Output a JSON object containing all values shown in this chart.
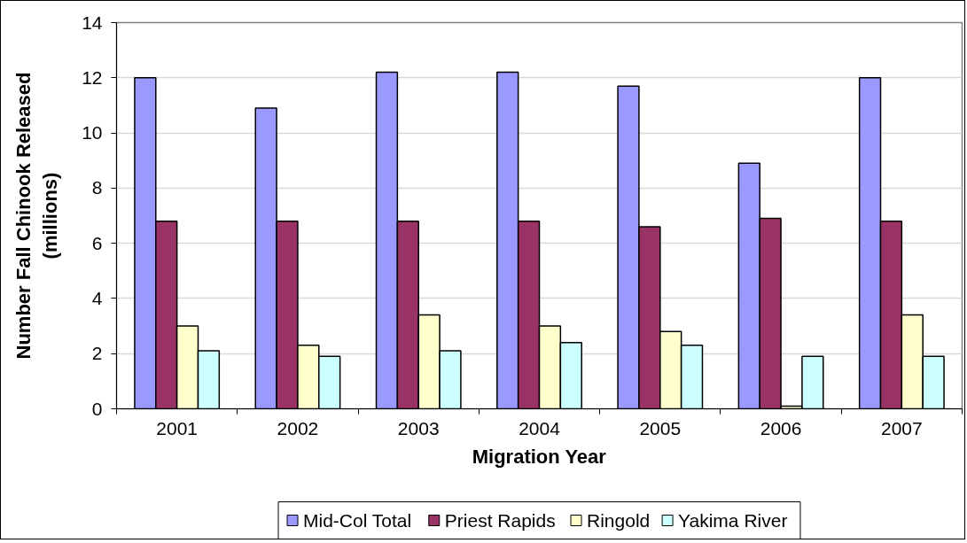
{
  "chart_data": {
    "type": "bar",
    "xlabel": "Migration Year",
    "ylabel": "Number Fall Chinook Released\n(millions)",
    "categories": [
      "2001",
      "2002",
      "2003",
      "2004",
      "2005",
      "2006",
      "2007"
    ],
    "series": [
      {
        "name": "Mid-Col Total",
        "color": "#9999ff",
        "values": [
          12.0,
          10.9,
          12.2,
          12.2,
          11.7,
          8.9,
          12.0
        ]
      },
      {
        "name": "Priest Rapids",
        "color": "#993366",
        "values": [
          6.8,
          6.8,
          6.8,
          6.8,
          6.6,
          6.9,
          6.8
        ]
      },
      {
        "name": "Ringold",
        "color": "#ffffcc",
        "values": [
          3.0,
          2.3,
          3.4,
          3.0,
          2.8,
          0.1,
          3.4
        ]
      },
      {
        "name": "Yakima River",
        "color": "#ccffff",
        "values": [
          2.1,
          1.9,
          2.1,
          2.4,
          2.3,
          1.9,
          1.9
        ]
      }
    ],
    "ylim": [
      0,
      14
    ],
    "yticks": [
      0,
      2,
      4,
      6,
      8,
      10,
      12,
      14
    ],
    "grid": "y",
    "legend": "bottom"
  }
}
